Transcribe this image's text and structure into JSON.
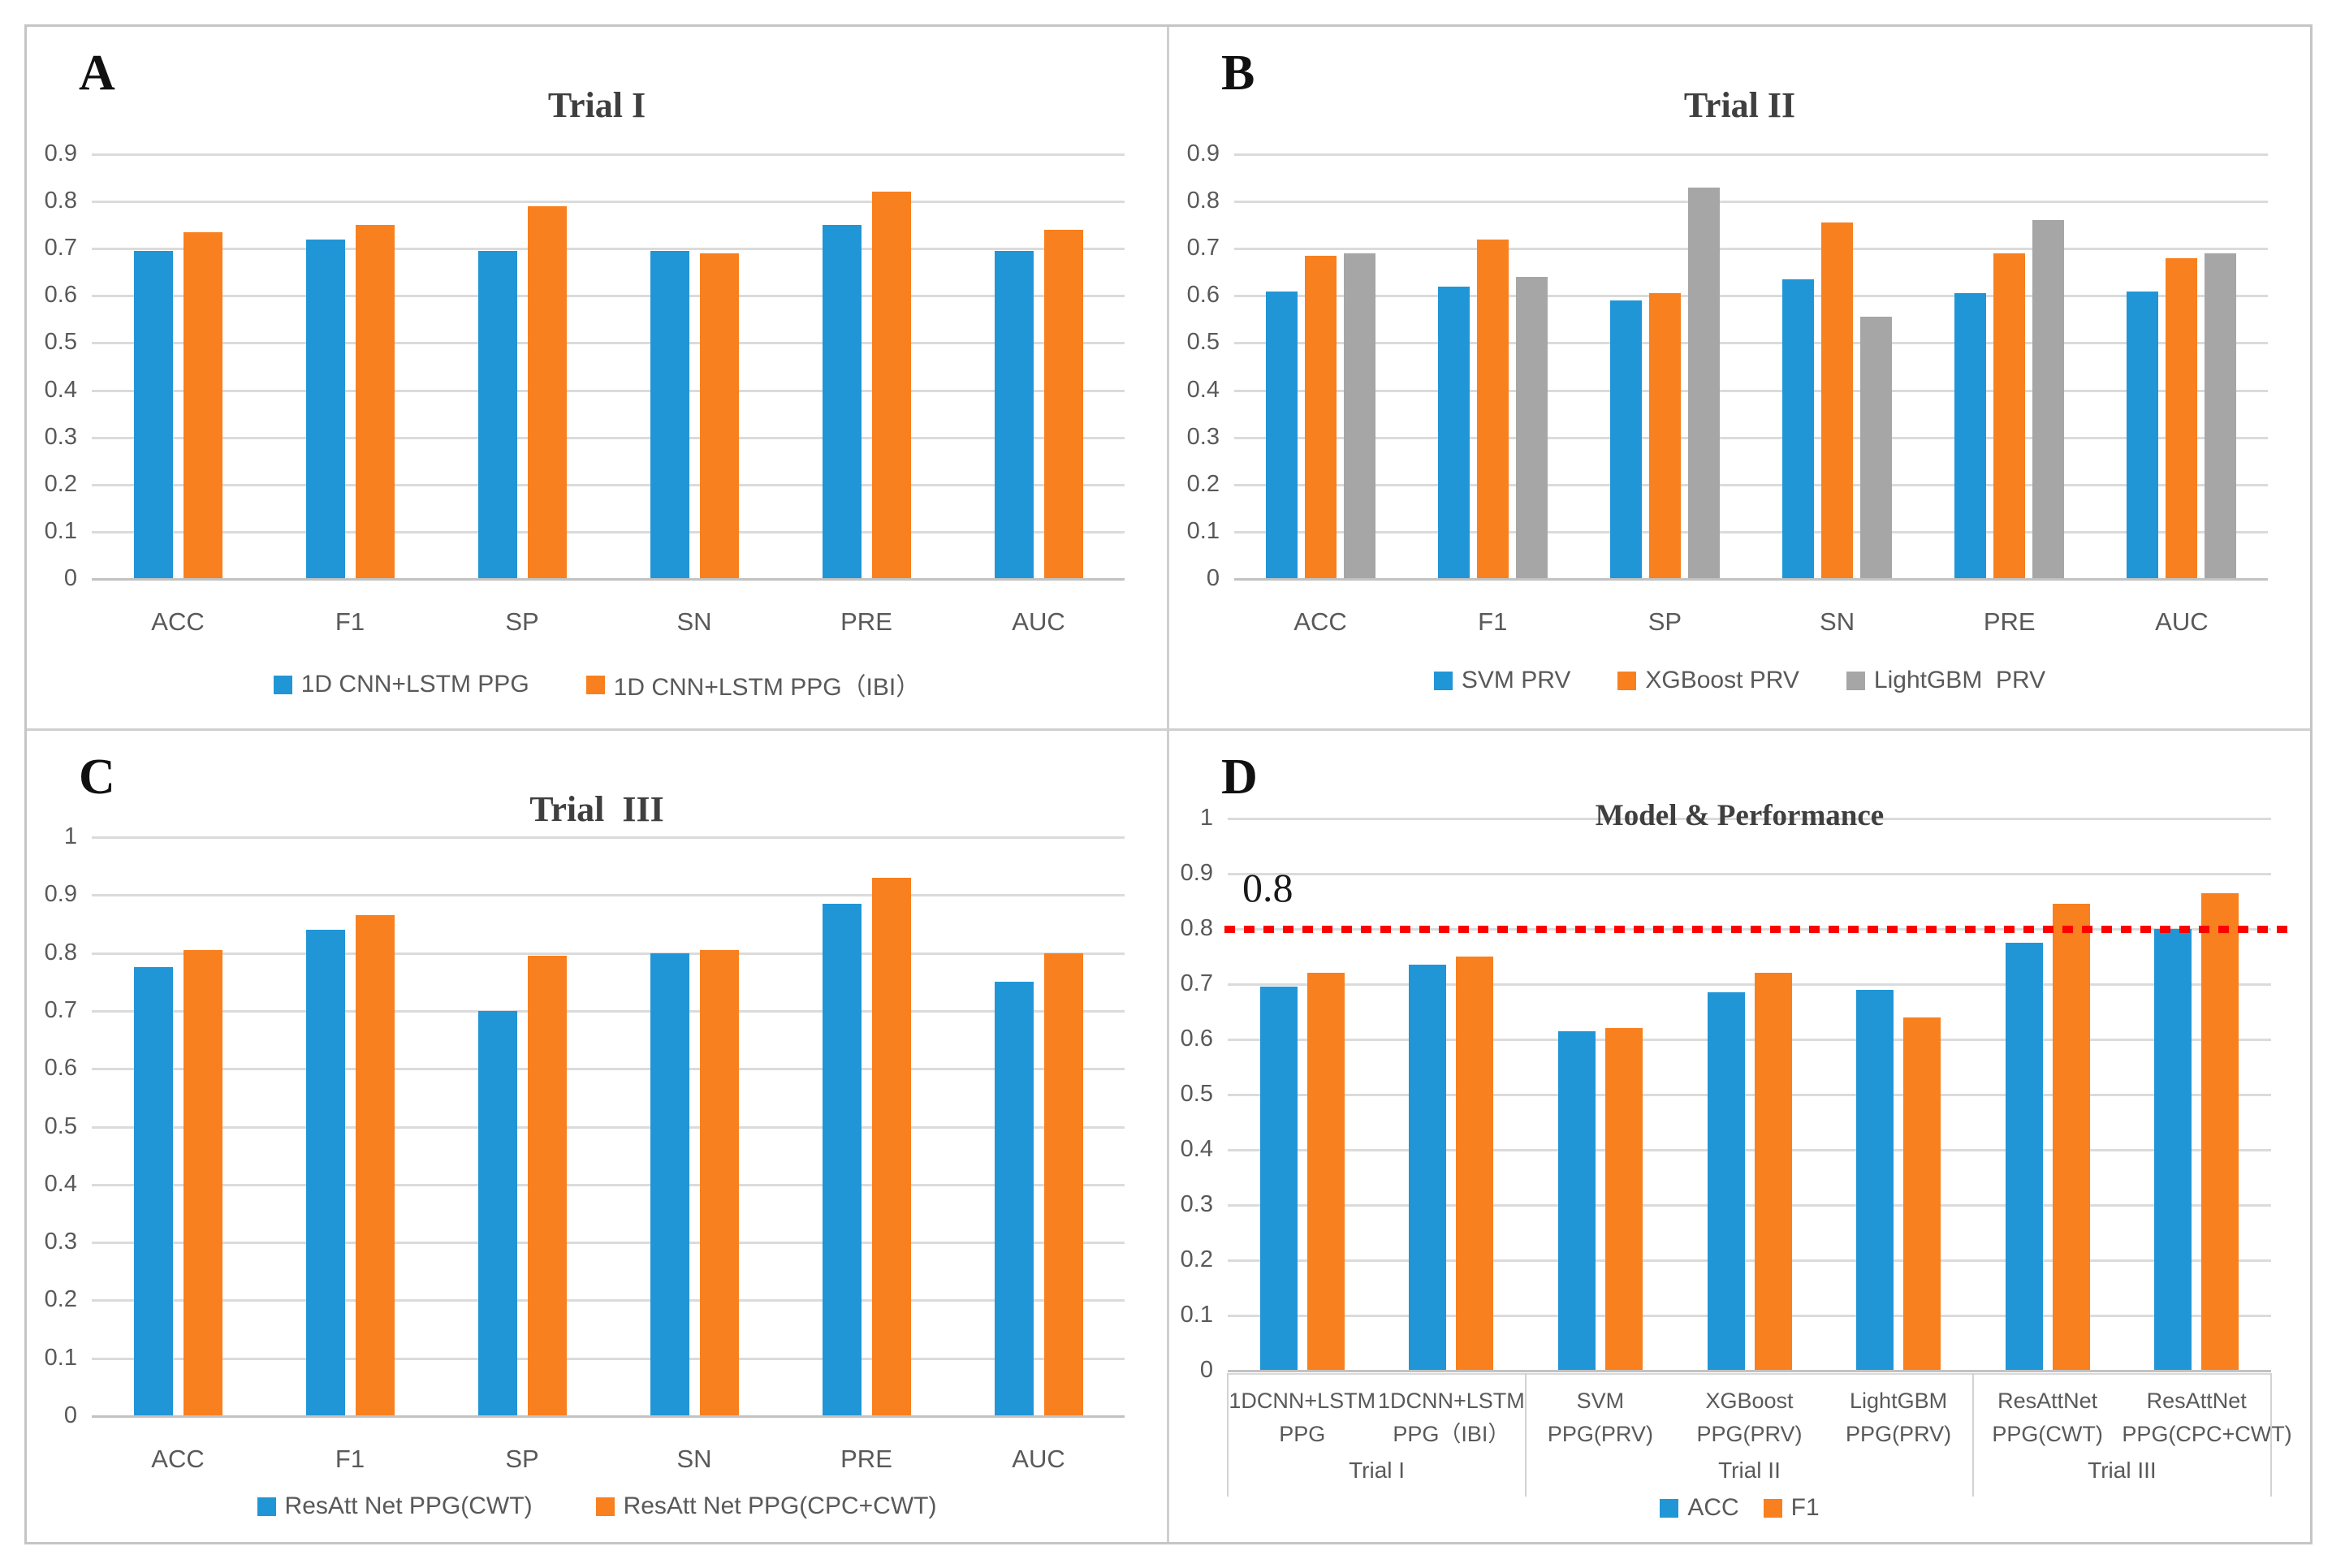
{
  "chart_data": [
    {
      "type": "bar",
      "panel_label": "A",
      "title": "Trial I",
      "categories": [
        "ACC",
        "F1",
        "SP",
        "SN",
        "PRE",
        "AUC"
      ],
      "series": [
        {
          "name": "1D CNN+LSTM PPG",
          "color": "#2196D6",
          "values": [
            0.695,
            0.72,
            0.695,
            0.695,
            0.75,
            0.695
          ]
        },
        {
          "name": "1D CNN+LSTM PPG（IBI）",
          "color": "#F8801F",
          "values": [
            0.735,
            0.75,
            0.79,
            0.69,
            0.82,
            0.74
          ]
        }
      ],
      "ylim": [
        0,
        0.9
      ],
      "y_ticks": [
        "0.9",
        "0.8",
        "0.7",
        "0.6",
        "0.5",
        "0.4",
        "0.3",
        "0.2",
        "0.1",
        "0"
      ],
      "xlabel": "",
      "ylabel": "",
      "grid": true,
      "legend_position": "bottom"
    },
    {
      "type": "bar",
      "panel_label": "B",
      "title": "Trial II",
      "categories": [
        "ACC",
        "F1",
        "SP",
        "SN",
        "PRE",
        "AUC"
      ],
      "series": [
        {
          "name": "SVM PRV",
          "color": "#2196D6",
          "values": [
            0.61,
            0.62,
            0.59,
            0.635,
            0.605,
            0.61
          ]
        },
        {
          "name": "XGBoost PRV",
          "color": "#F8801F",
          "values": [
            0.685,
            0.72,
            0.605,
            0.755,
            0.69,
            0.68
          ]
        },
        {
          "name": "LightGBM  PRV",
          "color": "#A6A6A6",
          "values": [
            0.69,
            0.64,
            0.83,
            0.555,
            0.76,
            0.69
          ]
        }
      ],
      "ylim": [
        0,
        0.9
      ],
      "y_ticks": [
        "0.9",
        "0.8",
        "0.7",
        "0.6",
        "0.5",
        "0.4",
        "0.3",
        "0.2",
        "0.1",
        "0"
      ],
      "xlabel": "",
      "ylabel": "",
      "grid": true,
      "legend_position": "bottom"
    },
    {
      "type": "bar",
      "panel_label": "C",
      "title": "Trial  III",
      "categories": [
        "ACC",
        "F1",
        "SP",
        "SN",
        "PRE",
        "AUC"
      ],
      "series": [
        {
          "name": "ResAtt Net PPG(CWT)",
          "color": "#2196D6",
          "values": [
            0.775,
            0.84,
            0.7,
            0.8,
            0.885,
            0.75
          ]
        },
        {
          "name": "ResAtt Net PPG(CPC+CWT)",
          "color": "#F8801F",
          "values": [
            0.805,
            0.865,
            0.795,
            0.805,
            0.93,
            0.8
          ]
        }
      ],
      "ylim": [
        0,
        1
      ],
      "y_ticks": [
        "1",
        "0.9",
        "0.8",
        "0.7",
        "0.6",
        "0.5",
        "0.4",
        "0.3",
        "0.2",
        "0.1",
        "0"
      ],
      "xlabel": "",
      "ylabel": "",
      "grid": true,
      "legend_position": "bottom"
    },
    {
      "type": "bar",
      "panel_label": "D",
      "title": "Model & Performance",
      "categories": [
        "1DCNN+LSTM\nPPG",
        "1DCNN+LSTM\nPPG（IBI）",
        "SVM\nPPG(PRV)",
        "XGBoost\nPPG(PRV)",
        "LightGBM\nPPG(PRV)",
        "ResAttNet\nPPG(CWT)",
        "ResAttNet\nPPG(CPC+CWT)"
      ],
      "category_groups": [
        {
          "label": "Trial I",
          "span": 2
        },
        {
          "label": "Trial II",
          "span": 3
        },
        {
          "label": "Trial III",
          "span": 2
        }
      ],
      "series": [
        {
          "name": "ACC",
          "color": "#2196D6",
          "values": [
            0.695,
            0.735,
            0.615,
            0.685,
            0.69,
            0.775,
            0.8
          ]
        },
        {
          "name": "F1",
          "color": "#F8801F",
          "values": [
            0.72,
            0.75,
            0.62,
            0.72,
            0.64,
            0.845,
            0.865
          ]
        }
      ],
      "ylim": [
        0,
        1
      ],
      "y_ticks": [
        "1",
        "0.9",
        "0.8",
        "0.7",
        "0.6",
        "0.5",
        "0.4",
        "0.3",
        "0.2",
        "0.1",
        "0"
      ],
      "ref_line": {
        "value": 0.8,
        "label": "0.8",
        "color": "#FF0000",
        "style": "dotted"
      },
      "xlabel": "",
      "ylabel": "",
      "grid": true,
      "legend_position": "bottom"
    }
  ]
}
